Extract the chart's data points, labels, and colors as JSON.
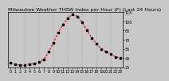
{
  "title": "Milwaukee Weather THSW Index per Hour (F) (Last 24 Hours)",
  "hours": [
    0,
    1,
    2,
    3,
    4,
    5,
    6,
    7,
    8,
    9,
    10,
    11,
    12,
    13,
    14,
    15,
    16,
    17,
    18,
    19,
    20,
    21,
    22,
    23
  ],
  "values": [
    32,
    30,
    28,
    29,
    30,
    31,
    33,
    38,
    50,
    65,
    82,
    95,
    105,
    112,
    108,
    98,
    85,
    73,
    63,
    55,
    50,
    46,
    42,
    40
  ],
  "line_color": "#ff0000",
  "marker_color": "#000000",
  "bg_color": "#c8c8c8",
  "plot_bg": "#c8c8c8",
  "grid_color": "#888888",
  "tick_color": "#000000",
  "ylim": [
    25,
    115
  ],
  "yticks": [
    25,
    40,
    55,
    70,
    85,
    100,
    115
  ],
  "ytick_labels": [
    "25",
    "40",
    "55",
    "70",
    "85",
    "100",
    "115"
  ],
  "xticks": [
    0,
    1,
    2,
    3,
    4,
    5,
    6,
    7,
    8,
    9,
    10,
    11,
    12,
    13,
    14,
    15,
    16,
    17,
    18,
    19,
    20,
    21,
    22,
    23
  ],
  "title_fontsize": 4.5,
  "tick_fontsize": 3.5,
  "linewidth": 0.8,
  "markersize": 1.8
}
